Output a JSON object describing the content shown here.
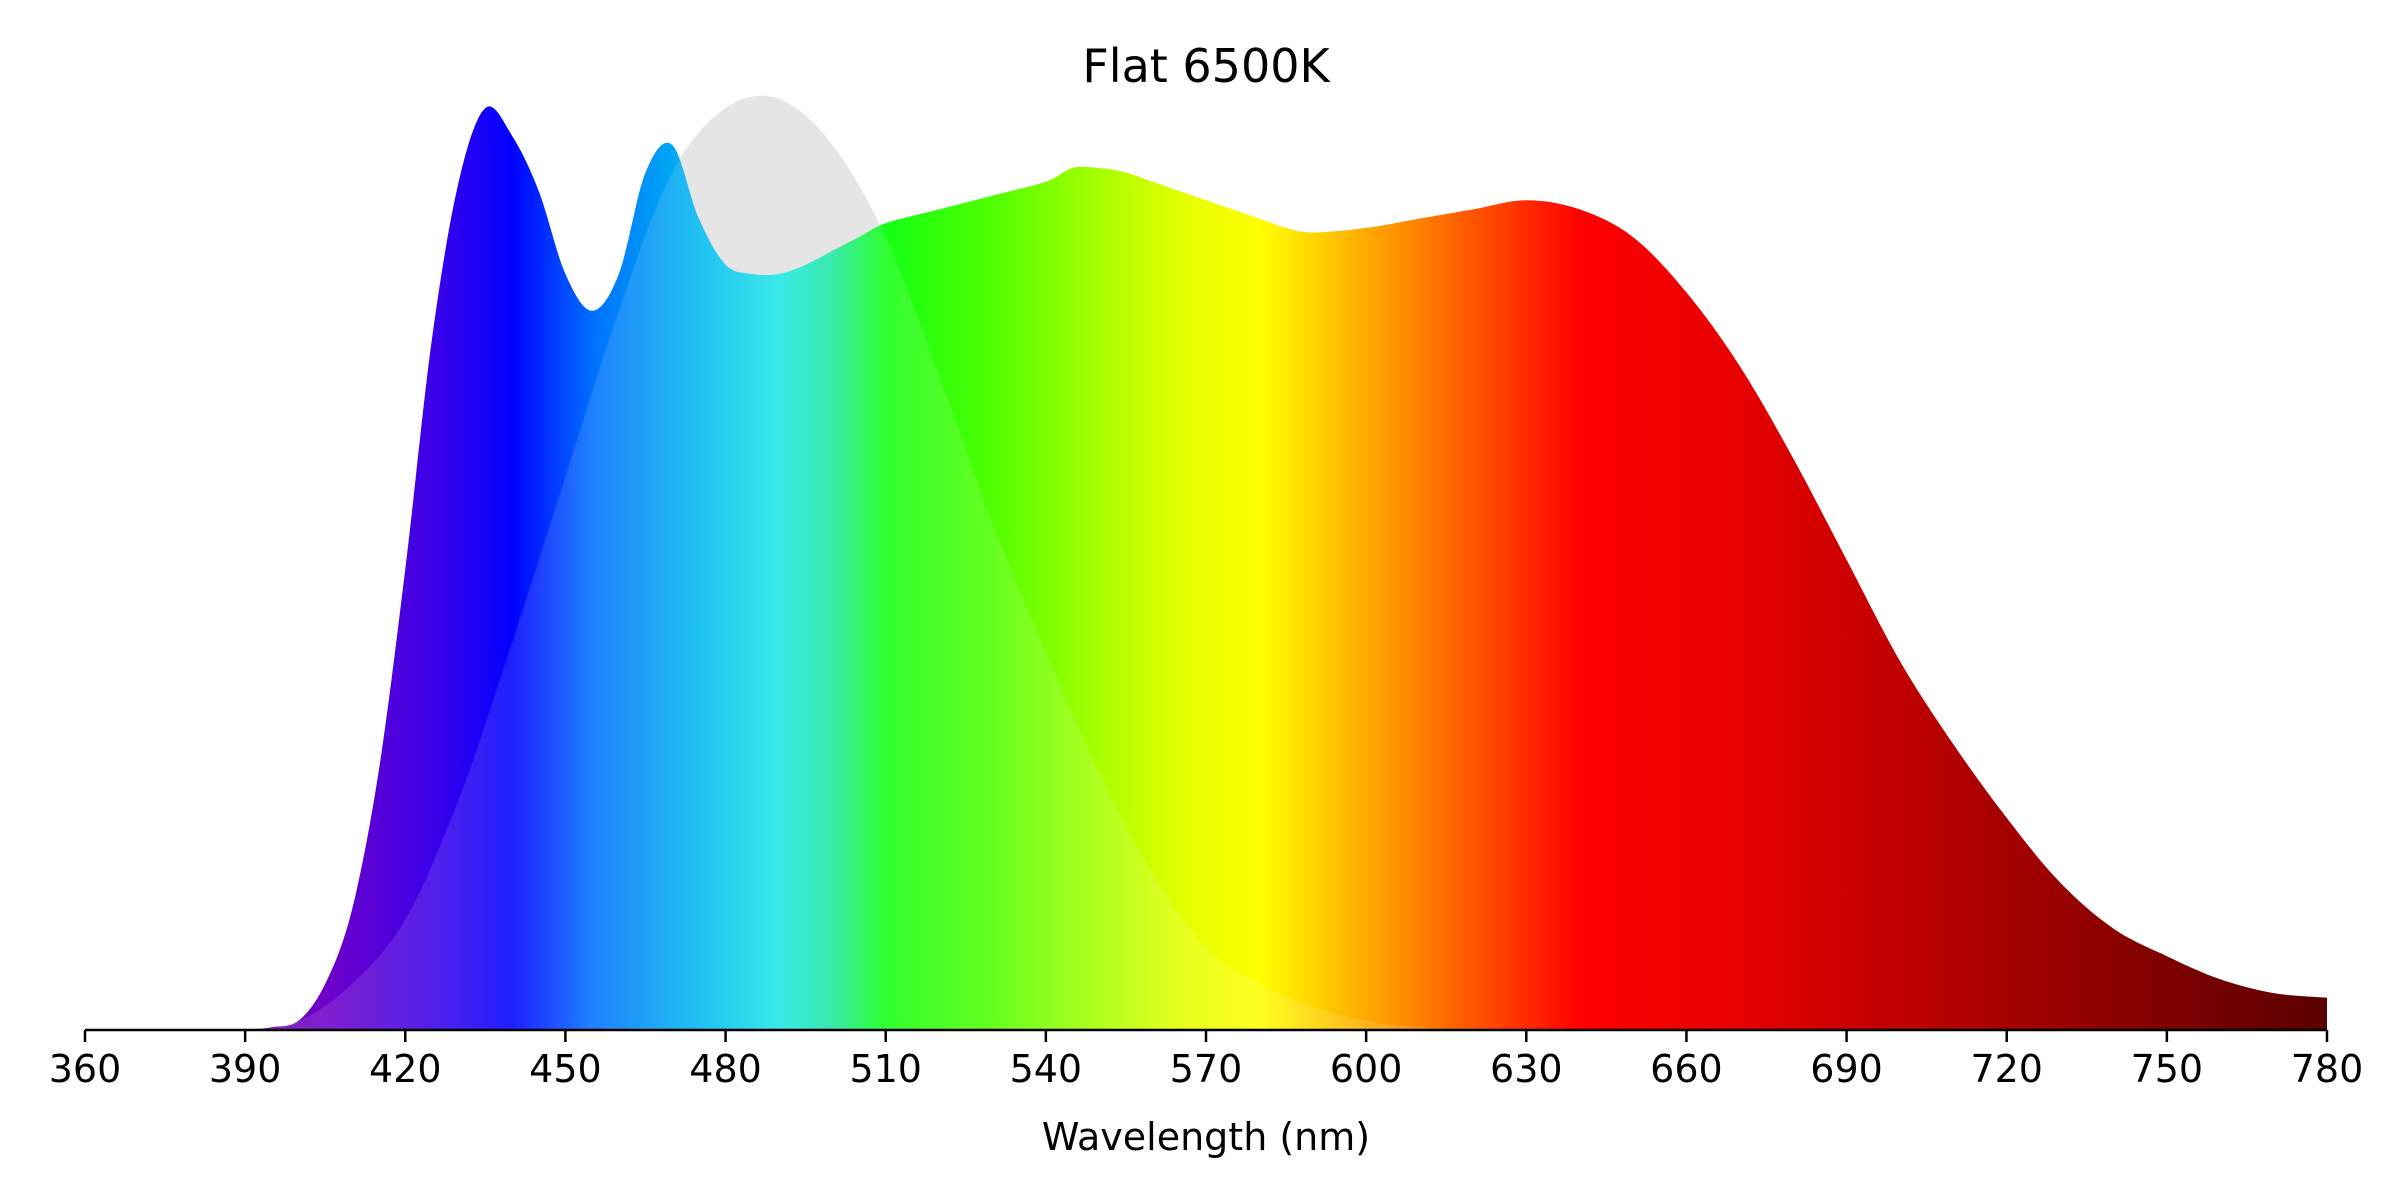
{
  "chart_data": {
    "type": "area",
    "title": "Flat 6500K",
    "xlabel": "Wavelength (nm)",
    "ylabel": "",
    "xlim": [
      360,
      780
    ],
    "ylim": [
      0,
      1
    ],
    "grid": false,
    "x_ticks": [
      360,
      390,
      420,
      450,
      480,
      510,
      540,
      570,
      600,
      630,
      660,
      690,
      720,
      750,
      780
    ],
    "series": [
      {
        "role": "reference-curve",
        "fill": "#e5e5e5",
        "points": [
          [
            390,
            0.0
          ],
          [
            400,
            0.01
          ],
          [
            410,
            0.05
          ],
          [
            420,
            0.12
          ],
          [
            430,
            0.25
          ],
          [
            440,
            0.42
          ],
          [
            450,
            0.6
          ],
          [
            460,
            0.78
          ],
          [
            470,
            0.93
          ],
          [
            480,
            1.0
          ],
          [
            490,
            1.01
          ],
          [
            500,
            0.96
          ],
          [
            510,
            0.86
          ],
          [
            520,
            0.71
          ],
          [
            530,
            0.55
          ],
          [
            540,
            0.41
          ],
          [
            550,
            0.28
          ],
          [
            560,
            0.17
          ],
          [
            570,
            0.09
          ],
          [
            580,
            0.05
          ],
          [
            590,
            0.025
          ],
          [
            600,
            0.01
          ],
          [
            610,
            0.003
          ],
          [
            620,
            0.0
          ]
        ]
      },
      {
        "role": "spectrum",
        "fill": "spectral-gradient",
        "points": [
          [
            390,
            0.0
          ],
          [
            395,
            0.003
          ],
          [
            400,
            0.01
          ],
          [
            405,
            0.05
          ],
          [
            410,
            0.13
          ],
          [
            415,
            0.28
          ],
          [
            420,
            0.5
          ],
          [
            425,
            0.75
          ],
          [
            430,
            0.92
          ],
          [
            435,
            1.0
          ],
          [
            440,
            0.97
          ],
          [
            445,
            0.91
          ],
          [
            450,
            0.82
          ],
          [
            455,
            0.78
          ],
          [
            460,
            0.82
          ],
          [
            465,
            0.93
          ],
          [
            470,
            0.96
          ],
          [
            475,
            0.88
          ],
          [
            480,
            0.83
          ],
          [
            485,
            0.82
          ],
          [
            490,
            0.82
          ],
          [
            495,
            0.83
          ],
          [
            500,
            0.845
          ],
          [
            505,
            0.86
          ],
          [
            510,
            0.875
          ],
          [
            520,
            0.89
          ],
          [
            530,
            0.905
          ],
          [
            540,
            0.92
          ],
          [
            545,
            0.935
          ],
          [
            550,
            0.935
          ],
          [
            555,
            0.93
          ],
          [
            560,
            0.92
          ],
          [
            570,
            0.9
          ],
          [
            580,
            0.88
          ],
          [
            585,
            0.87
          ],
          [
            590,
            0.865
          ],
          [
            600,
            0.87
          ],
          [
            610,
            0.88
          ],
          [
            620,
            0.89
          ],
          [
            630,
            0.9
          ],
          [
            640,
            0.89
          ],
          [
            650,
            0.86
          ],
          [
            660,
            0.8
          ],
          [
            670,
            0.72
          ],
          [
            680,
            0.62
          ],
          [
            690,
            0.51
          ],
          [
            700,
            0.4
          ],
          [
            710,
            0.31
          ],
          [
            720,
            0.23
          ],
          [
            730,
            0.16
          ],
          [
            740,
            0.11
          ],
          [
            750,
            0.08
          ],
          [
            760,
            0.055
          ],
          [
            770,
            0.04
          ],
          [
            780,
            0.035
          ]
        ]
      }
    ],
    "gradient_stops": [
      {
        "nm": 360,
        "color": "#6a0a9a"
      },
      {
        "nm": 380,
        "color": "#6a0a9a"
      },
      {
        "nm": 405,
        "color": "#6e00c8"
      },
      {
        "nm": 425,
        "color": "#3c00e8"
      },
      {
        "nm": 440,
        "color": "#0000ff"
      },
      {
        "nm": 455,
        "color": "#0070ff"
      },
      {
        "nm": 475,
        "color": "#00b8f0"
      },
      {
        "nm": 490,
        "color": "#1ee6e6"
      },
      {
        "nm": 500,
        "color": "#1ee6a0"
      },
      {
        "nm": 510,
        "color": "#14ff14"
      },
      {
        "nm": 530,
        "color": "#50ff00"
      },
      {
        "nm": 550,
        "color": "#a8ff00"
      },
      {
        "nm": 565,
        "color": "#e2ff00"
      },
      {
        "nm": 580,
        "color": "#ffff00"
      },
      {
        "nm": 600,
        "color": "#ffaa00"
      },
      {
        "nm": 620,
        "color": "#ff5500"
      },
      {
        "nm": 640,
        "color": "#ff0000"
      },
      {
        "nm": 670,
        "color": "#e60000"
      },
      {
        "nm": 700,
        "color": "#bf0000"
      },
      {
        "nm": 740,
        "color": "#8a0000"
      },
      {
        "nm": 780,
        "color": "#5a0000"
      }
    ]
  }
}
